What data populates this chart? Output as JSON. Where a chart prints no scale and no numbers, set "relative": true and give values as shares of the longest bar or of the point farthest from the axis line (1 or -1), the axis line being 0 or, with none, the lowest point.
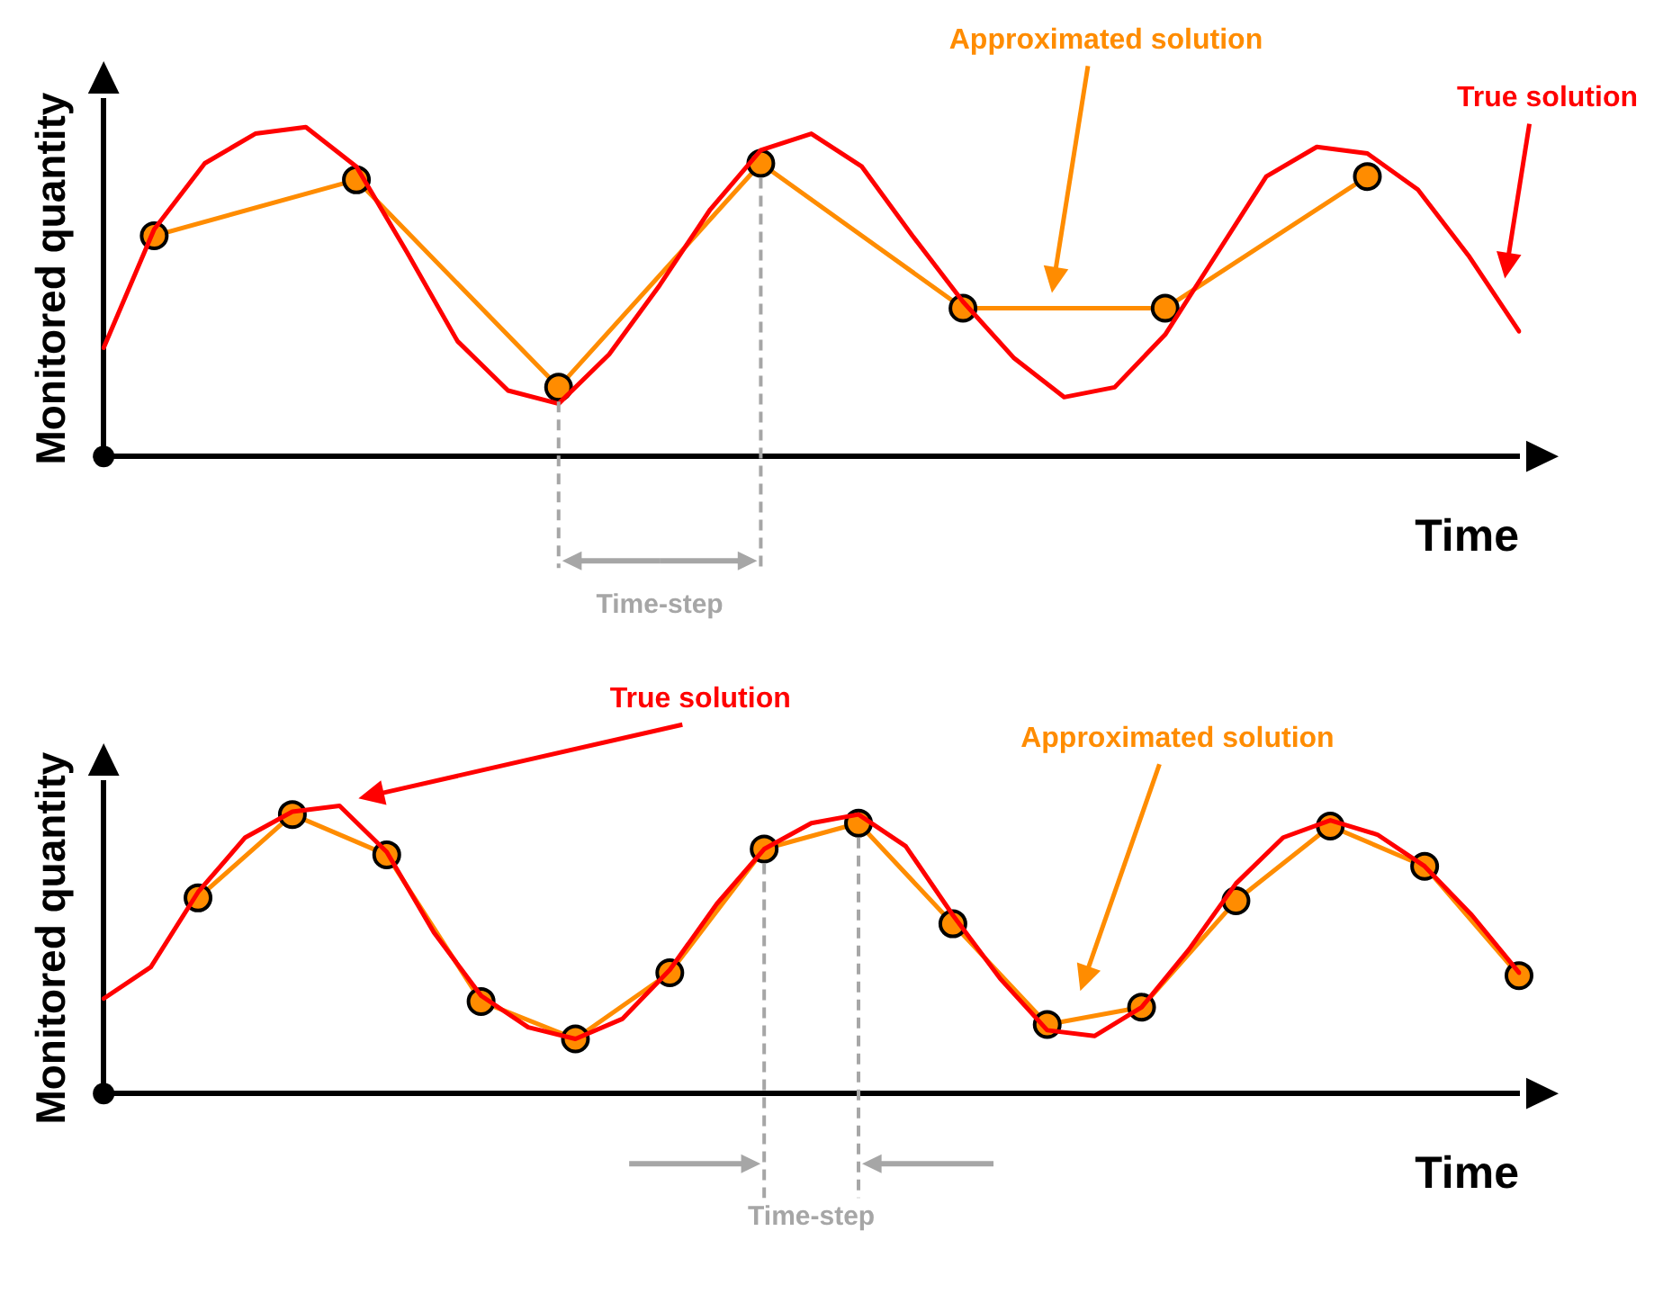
{
  "chart_data": [
    {
      "type": "line",
      "relative": true,
      "xlabel": "Time",
      "ylabel": "Monitored quantity",
      "grid": false,
      "categories": [
        null,
        null,
        null,
        null,
        null,
        null,
        null,
        null,
        null,
        null,
        null,
        null,
        null,
        null,
        null,
        null,
        null,
        null,
        null,
        null,
        null,
        null,
        null,
        null,
        null,
        null,
        null,
        null,
        null
      ],
      "series": [
        {
          "color": "#ff0000",
          "marker": "none",
          "values": [
            0.33,
            0.69,
            0.89,
            0.98,
            1,
            0.88,
            0.62,
            0.35,
            0.2,
            0.16,
            0.31,
            0.52,
            0.75,
            0.93,
            0.98,
            0.88,
            0.67,
            0.47,
            0.3,
            0.18,
            0.21,
            0.37,
            0.61,
            0.85,
            0.94,
            0.92,
            0.81,
            0.61,
            0.38
          ]
        },
        {
          "color": "#ff8c00",
          "marker": "circle",
          "values": [
            null,
            0.67,
            null,
            null,
            null,
            0.84,
            null,
            null,
            null,
            0.21,
            null,
            null,
            null,
            0.89,
            null,
            null,
            null,
            0.45,
            null,
            null,
            null,
            0.45,
            null,
            null,
            null,
            0.85,
            null,
            null,
            null
          ]
        }
      ],
      "annotations": [
        "True solution",
        "Approximated solution",
        "Time-step"
      ]
    },
    {
      "type": "line",
      "relative": true,
      "xlabel": "Time",
      "ylabel": "Monitored quantity",
      "grid": false,
      "categories": [
        null,
        null,
        null,
        null,
        null,
        null,
        null,
        null,
        null,
        null,
        null,
        null,
        null,
        null,
        null,
        null,
        null,
        null,
        null,
        null,
        null,
        null,
        null,
        null,
        null,
        null,
        null,
        null,
        null,
        null,
        null
      ],
      "series": [
        {
          "color": "#ff0000",
          "marker": "none",
          "values": [
            0.33,
            0.44,
            0.7,
            0.89,
            0.98,
            1,
            0.84,
            0.56,
            0.34,
            0.23,
            0.19,
            0.26,
            0.43,
            0.66,
            0.85,
            0.94,
            0.97,
            0.86,
            0.62,
            0.4,
            0.22,
            0.2,
            0.3,
            0.5,
            0.73,
            0.89,
            0.95,
            0.9,
            0.79,
            0.62,
            0.42
          ]
        },
        {
          "color": "#ff8c00",
          "marker": "circle",
          "values": [
            null,
            null,
            0.68,
            null,
            0.97,
            null,
            0.83,
            null,
            0.32,
            null,
            0.19,
            null,
            0.42,
            null,
            0.85,
            null,
            0.94,
            null,
            0.59,
            null,
            0.24,
            null,
            0.3,
            null,
            0.67,
            null,
            0.93,
            null,
            0.79,
            null,
            0.41
          ]
        }
      ],
      "annotations": [
        "True solution",
        "Approximated solution",
        "Time-step"
      ]
    }
  ]
}
